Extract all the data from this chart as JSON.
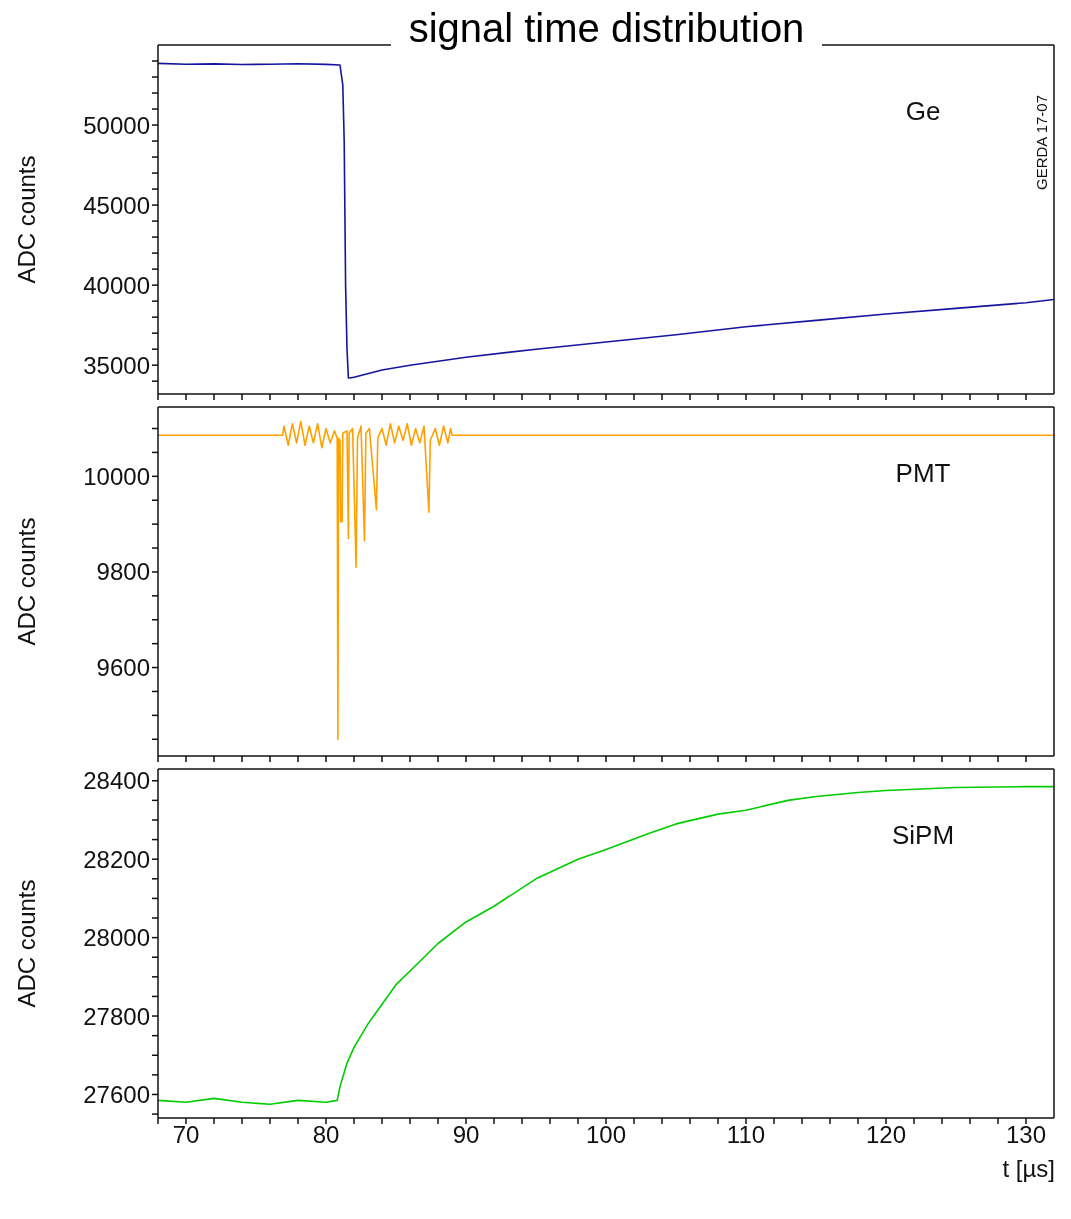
{
  "chart_data": [
    {
      "type": "line",
      "title": "signal time distribution",
      "ylabel": "ADC counts",
      "tick_labels": "y",
      "marker": "none",
      "line_style": "solid",
      "annotations": [
        "Ge",
        "GERDA 17-07"
      ],
      "xlim": [
        68,
        132
      ],
      "xticks": [
        {
          "value": 68,
          "label": null
        },
        70,
        {
          "value": 72,
          "label": null
        },
        {
          "value": 74,
          "label": null
        },
        {
          "value": 76,
          "label": null
        },
        {
          "value": 78,
          "label": null
        },
        80,
        {
          "value": 82,
          "label": null
        },
        {
          "value": 84,
          "label": null
        },
        {
          "value": 86,
          "label": null
        },
        {
          "value": 88,
          "label": null
        },
        90,
        {
          "value": 92,
          "label": null
        },
        {
          "value": 94,
          "label": null
        },
        {
          "value": 96,
          "label": null
        },
        {
          "value": 98,
          "label": null
        },
        100,
        {
          "value": 102,
          "label": null
        },
        {
          "value": 104,
          "label": null
        },
        {
          "value": 106,
          "label": null
        },
        {
          "value": 108,
          "label": null
        },
        110,
        {
          "value": 112,
          "label": null
        },
        {
          "value": 114,
          "label": null
        },
        {
          "value": 116,
          "label": null
        },
        {
          "value": 118,
          "label": null
        },
        120,
        {
          "value": 122,
          "label": null
        },
        {
          "value": 124,
          "label": null
        },
        {
          "value": 126,
          "label": null
        },
        {
          "value": 128,
          "label": null
        },
        130
      ],
      "ylim": [
        33200,
        55000
      ],
      "yticks": [
        {
          "value": 34000,
          "label": null
        },
        35000,
        {
          "value": 36000,
          "label": null
        },
        {
          "value": 37000,
          "label": null
        },
        {
          "value": 38000,
          "label": null
        },
        {
          "value": 39000,
          "label": null
        },
        40000,
        {
          "value": 41000,
          "label": null
        },
        {
          "value": 42000,
          "label": null
        },
        {
          "value": 43000,
          "label": null
        },
        {
          "value": 44000,
          "label": null
        },
        45000,
        {
          "value": 46000,
          "label": null
        },
        {
          "value": 47000,
          "label": null
        },
        {
          "value": 48000,
          "label": null
        },
        {
          "value": 49000,
          "label": null
        },
        50000,
        {
          "value": 51000,
          "label": null
        },
        {
          "value": 52000,
          "label": null
        },
        {
          "value": 53000,
          "label": null
        },
        {
          "value": 54000,
          "label": null
        }
      ],
      "series": [
        {
          "color": "#1414a0",
          "x": [
            68,
            70,
            72,
            74,
            76,
            78,
            80,
            81,
            81.2,
            81.3,
            81.4,
            81.5,
            81.6,
            81.7,
            82,
            84,
            86,
            88,
            90,
            95,
            100,
            105,
            110,
            115,
            120,
            125,
            130,
            132
          ],
          "values": [
            53850,
            53800,
            53820,
            53780,
            53800,
            53830,
            53790,
            53750,
            52500,
            49000,
            40000,
            36000,
            34200,
            34200,
            34250,
            34700,
            35000,
            35250,
            35500,
            36000,
            36450,
            36900,
            37400,
            37800,
            38200,
            38550,
            38900,
            39100
          ]
        }
      ]
    },
    {
      "type": "line",
      "ylabel": "ADC counts",
      "tick_labels": "y",
      "marker": "none",
      "line_style": "solid",
      "annotations": [
        "PMT"
      ],
      "xlim": [
        68,
        132
      ],
      "xticks": [
        {
          "value": 68,
          "label": null
        },
        70,
        {
          "value": 72,
          "label": null
        },
        {
          "value": 74,
          "label": null
        },
        {
          "value": 76,
          "label": null
        },
        {
          "value": 78,
          "label": null
        },
        80,
        {
          "value": 82,
          "label": null
        },
        {
          "value": 84,
          "label": null
        },
        {
          "value": 86,
          "label": null
        },
        {
          "value": 88,
          "label": null
        },
        90,
        {
          "value": 92,
          "label": null
        },
        {
          "value": 94,
          "label": null
        },
        {
          "value": 96,
          "label": null
        },
        {
          "value": 98,
          "label": null
        },
        100,
        {
          "value": 102,
          "label": null
        },
        {
          "value": 104,
          "label": null
        },
        {
          "value": 106,
          "label": null
        },
        {
          "value": 108,
          "label": null
        },
        110,
        {
          "value": 112,
          "label": null
        },
        {
          "value": 114,
          "label": null
        },
        {
          "value": 116,
          "label": null
        },
        {
          "value": 118,
          "label": null
        },
        120,
        {
          "value": 122,
          "label": null
        },
        {
          "value": 124,
          "label": null
        },
        {
          "value": 126,
          "label": null
        },
        {
          "value": 128,
          "label": null
        },
        130
      ],
      "ylim": [
        9415,
        10145
      ],
      "yticks": [
        {
          "value": 9450,
          "label": null
        },
        {
          "value": 9500,
          "label": null
        },
        {
          "value": 9550,
          "label": null
        },
        9600,
        {
          "value": 9650,
          "label": null
        },
        {
          "value": 9700,
          "label": null
        },
        {
          "value": 9750,
          "label": null
        },
        9800,
        {
          "value": 9850,
          "label": null
        },
        {
          "value": 9900,
          "label": null
        },
        {
          "value": 9950,
          "label": null
        },
        10000,
        {
          "value": 10050,
          "label": null
        },
        {
          "value": 10100,
          "label": null
        }
      ],
      "series": [
        {
          "color": "#ffa000",
          "x": [
            68,
            76.9,
            77.0,
            77.3,
            77.6,
            77.9,
            78.2,
            78.5,
            78.8,
            79.1,
            79.4,
            79.7,
            80.0,
            80.3,
            80.6,
            80.8,
            80.85,
            80.9,
            81.0,
            81.05,
            81.15,
            81.2,
            81.5,
            81.6,
            81.65,
            81.9,
            82.15,
            82.25,
            82.5,
            82.75,
            82.85,
            83.1,
            83.6,
            83.7,
            84.0,
            84.3,
            84.6,
            84.9,
            85.2,
            85.5,
            85.8,
            86.1,
            86.4,
            86.7,
            87.0,
            87.35,
            87.45,
            87.8,
            88.1,
            88.4,
            88.7,
            88.9,
            89.0,
            132
          ],
          "values": [
            10086,
            10086,
            10105,
            10065,
            10110,
            10070,
            10115,
            10065,
            10105,
            10070,
            10110,
            10060,
            10100,
            10070,
            10095,
            10080,
            9450,
            10080,
            10075,
            9905,
            9905,
            10090,
            10095,
            9870,
            10090,
            10100,
            9810,
            10080,
            10105,
            9865,
            10090,
            10100,
            9930,
            10080,
            10100,
            10065,
            10110,
            10070,
            10105,
            10075,
            10110,
            10065,
            10100,
            10070,
            10105,
            9925,
            10075,
            10100,
            10065,
            10105,
            10070,
            10100,
            10086,
            10086
          ]
        }
      ]
    },
    {
      "type": "line",
      "ylabel": "ADC counts",
      "xlabel": "t [µs]",
      "marker": "none",
      "line_style": "solid",
      "annotations": [
        "SiPM"
      ],
      "xlim": [
        68,
        132
      ],
      "xticks": [
        {
          "value": 68,
          "label": null
        },
        70,
        {
          "value": 72,
          "label": null
        },
        {
          "value": 74,
          "label": null
        },
        {
          "value": 76,
          "label": null
        },
        {
          "value": 78,
          "label": null
        },
        80,
        {
          "value": 82,
          "label": null
        },
        {
          "value": 84,
          "label": null
        },
        {
          "value": 86,
          "label": null
        },
        {
          "value": 88,
          "label": null
        },
        90,
        {
          "value": 92,
          "label": null
        },
        {
          "value": 94,
          "label": null
        },
        {
          "value": 96,
          "label": null
        },
        {
          "value": 98,
          "label": null
        },
        100,
        {
          "value": 102,
          "label": null
        },
        {
          "value": 104,
          "label": null
        },
        {
          "value": 106,
          "label": null
        },
        {
          "value": 108,
          "label": null
        },
        110,
        {
          "value": 112,
          "label": null
        },
        {
          "value": 114,
          "label": null
        },
        {
          "value": 116,
          "label": null
        },
        {
          "value": 118,
          "label": null
        },
        120,
        {
          "value": 122,
          "label": null
        },
        {
          "value": 124,
          "label": null
        },
        {
          "value": 126,
          "label": null
        },
        {
          "value": 128,
          "label": null
        },
        130
      ],
      "ylim": [
        27540,
        28430
      ],
      "yticks": [
        {
          "value": 27550,
          "label": null
        },
        27600,
        {
          "value": 27650,
          "label": null
        },
        {
          "value": 27700,
          "label": null
        },
        {
          "value": 27750,
          "label": null
        },
        27800,
        {
          "value": 27850,
          "label": null
        },
        {
          "value": 27900,
          "label": null
        },
        {
          "value": 27950,
          "label": null
        },
        28000,
        {
          "value": 28050,
          "label": null
        },
        {
          "value": 28100,
          "label": null
        },
        {
          "value": 28150,
          "label": null
        },
        28200,
        {
          "value": 28250,
          "label": null
        },
        {
          "value": 28300,
          "label": null
        },
        {
          "value": 28350,
          "label": null
        },
        28400
      ],
      "series": [
        {
          "color": "#00cc00",
          "x": [
            68,
            70,
            72,
            74,
            76,
            78,
            80,
            80.8,
            81.0,
            81.5,
            82,
            83,
            84,
            85,
            86,
            87,
            88,
            90,
            92,
            95,
            98,
            100,
            103,
            105,
            108,
            110,
            113,
            115,
            118,
            120,
            125,
            130,
            132
          ],
          "values": [
            27585,
            27580,
            27590,
            27580,
            27575,
            27585,
            27580,
            27585,
            27620,
            27680,
            27720,
            27780,
            27830,
            27880,
            27915,
            27950,
            27985,
            28040,
            28080,
            28150,
            28200,
            28225,
            28265,
            28290,
            28315,
            28325,
            28350,
            28360,
            28370,
            28375,
            28383,
            28385,
            28385
          ]
        }
      ]
    }
  ]
}
